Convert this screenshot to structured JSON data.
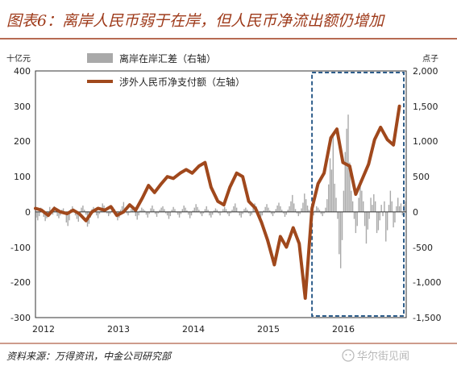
{
  "chart_data": {
    "type": "line+bar",
    "title": "图表6：离岸人民币弱于在岸，但人民币净流出额仍增加",
    "left_unit": "十亿元",
    "right_unit": "点子",
    "left_axis": {
      "ylim": [
        -300,
        400
      ],
      "ticks": [
        "400",
        "300",
        "200",
        "100",
        "0",
        "-100",
        "-200",
        "-300"
      ]
    },
    "right_axis": {
      "ylim": [
        -1500,
        2000
      ],
      "ticks": [
        "2,000",
        "1,500",
        "1,000",
        "500",
        "0",
        "-500",
        "-1,000",
        "-1,500"
      ]
    },
    "x_ticks": [
      "2012",
      "2013",
      "2014",
      "2015",
      "2016"
    ],
    "x_range": [
      2012.0,
      2016.92
    ],
    "legend": {
      "bar_label": "离岸在岸汇差（右轴）",
      "line_label": "涉外人民币净支付额（左轴）"
    },
    "series": [
      {
        "name": "涉外人民币净支付额（左轴）",
        "axis": "left",
        "color": "#a0481c",
        "points": [
          [
            2012.0,
            10
          ],
          [
            2012.08,
            5
          ],
          [
            2012.17,
            -10
          ],
          [
            2012.25,
            10
          ],
          [
            2012.33,
            0
          ],
          [
            2012.42,
            -5
          ],
          [
            2012.5,
            5
          ],
          [
            2012.58,
            -5
          ],
          [
            2012.67,
            -25
          ],
          [
            2012.75,
            0
          ],
          [
            2012.83,
            10
          ],
          [
            2012.92,
            5
          ],
          [
            2013.0,
            15
          ],
          [
            2013.08,
            -10
          ],
          [
            2013.17,
            0
          ],
          [
            2013.25,
            20
          ],
          [
            2013.33,
            5
          ],
          [
            2013.42,
            40
          ],
          [
            2013.5,
            75
          ],
          [
            2013.58,
            55
          ],
          [
            2013.67,
            80
          ],
          [
            2013.75,
            100
          ],
          [
            2013.83,
            95
          ],
          [
            2013.92,
            110
          ],
          [
            2014.0,
            120
          ],
          [
            2014.08,
            110
          ],
          [
            2014.17,
            130
          ],
          [
            2014.25,
            140
          ],
          [
            2014.33,
            70
          ],
          [
            2014.42,
            30
          ],
          [
            2014.5,
            20
          ],
          [
            2014.58,
            70
          ],
          [
            2014.67,
            110
          ],
          [
            2014.75,
            100
          ],
          [
            2014.83,
            30
          ],
          [
            2014.92,
            10
          ],
          [
            2015.0,
            -30
          ],
          [
            2015.08,
            -80
          ],
          [
            2015.17,
            -150
          ],
          [
            2015.25,
            -70
          ],
          [
            2015.33,
            -100
          ],
          [
            2015.42,
            -45
          ],
          [
            2015.5,
            -90
          ],
          [
            2015.58,
            -245
          ],
          [
            2015.67,
            10
          ],
          [
            2015.75,
            80
          ],
          [
            2015.83,
            110
          ],
          [
            2015.92,
            210
          ],
          [
            2016.0,
            235
          ],
          [
            2016.08,
            140
          ],
          [
            2016.17,
            130
          ],
          [
            2016.25,
            50
          ],
          [
            2016.33,
            90
          ],
          [
            2016.42,
            135
          ],
          [
            2016.5,
            205
          ],
          [
            2016.58,
            240
          ],
          [
            2016.67,
            205
          ],
          [
            2016.75,
            190
          ],
          [
            2016.83,
            300
          ]
        ]
      },
      {
        "name": "离岸在岸汇差（右轴）",
        "axis": "right",
        "color": "#a9a9a9",
        "x_start": 2012.0,
        "x_end": 2016.92,
        "values": [
          -80,
          -120,
          -60,
          60,
          40,
          -70,
          -130,
          -90,
          -30,
          70,
          20,
          -40,
          80,
          50,
          -60,
          -90,
          -50,
          30,
          50,
          -20,
          -150,
          -200,
          -120,
          40,
          80,
          40,
          -50,
          -100,
          -140,
          -60,
          60,
          90,
          30,
          -40,
          -210,
          -170,
          -80,
          40,
          70,
          20,
          -50,
          -90,
          -30,
          50,
          120,
          90,
          40,
          -20,
          -60,
          -30,
          20,
          70,
          40,
          -50,
          -120,
          -80,
          30,
          80,
          140,
          60,
          -20,
          -50,
          -10,
          40,
          80,
          30,
          -60,
          -110,
          -50,
          20,
          60,
          40,
          20,
          -40,
          -80,
          -30,
          50,
          90,
          40,
          -30,
          -70,
          -20,
          30,
          60,
          80,
          40,
          -20,
          -50,
          -100,
          -60,
          30,
          70,
          40,
          -10,
          -40,
          -80,
          -30,
          40,
          90,
          60,
          20,
          -40,
          -90,
          -50,
          20,
          60,
          110,
          70,
          30,
          -30,
          -60,
          -20,
          40,
          80,
          30,
          -50,
          -80,
          -40,
          20,
          50,
          30,
          -20,
          -50,
          -10,
          40,
          70,
          40,
          -30,
          -60,
          -20,
          30,
          80,
          120,
          60,
          -10,
          -50,
          -80,
          -30,
          40,
          60,
          30,
          -20,
          -60,
          -40,
          60,
          120,
          80,
          30,
          -40,
          -80,
          -50,
          20,
          70,
          110,
          60,
          20,
          -30,
          -60,
          -20,
          40,
          90,
          130,
          80,
          30,
          -20,
          -70,
          -40,
          30,
          80,
          150,
          240,
          120,
          40,
          -20,
          -60,
          -30,
          50,
          130,
          260,
          180,
          90,
          30,
          -40,
          -80,
          -50,
          20,
          80,
          60,
          30,
          -30,
          -60,
          -20,
          60,
          180,
          390,
          760,
          600,
          1100,
          400,
          200,
          -100,
          -600,
          -800,
          -400,
          300,
          850,
          1180,
          1380,
          700,
          300,
          150,
          -100,
          -300,
          -200,
          200,
          450,
          300,
          150,
          -200,
          -450,
          -250,
          -100,
          200,
          100,
          250,
          150,
          -300,
          -260,
          -120,
          100,
          -60,
          150,
          -420,
          -260,
          100,
          300,
          150,
          -220,
          -150,
          80,
          200,
          80,
          120,
          -50,
          100,
          150
        ]
      }
    ],
    "highlight_box": {
      "x_range": [
        2015.67,
        2016.92
      ],
      "y_range_left": [
        -300,
        400
      ]
    }
  },
  "source": "资料来源：万得资讯，中金公司研究部",
  "watermark": "华尔街见闻"
}
